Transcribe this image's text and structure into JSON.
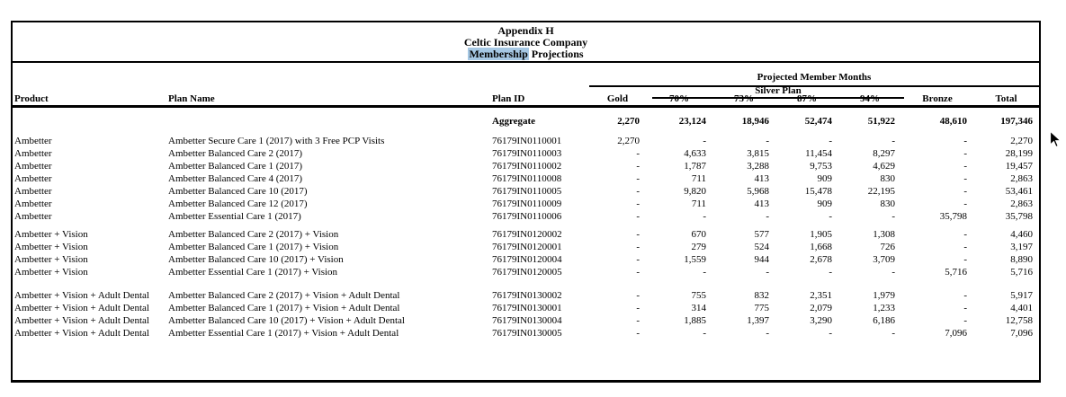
{
  "title": {
    "line1": "Appendix H",
    "line2": "Celtic Insurance Company",
    "line3_highlighted": "Membership",
    "line3_rest": " Projections"
  },
  "colors": {
    "find_highlight": "#a6c8e4",
    "text": "#000000",
    "background": "#ffffff"
  },
  "table": {
    "span_header": "Projected Member Months",
    "silver_span_header": "Silver Plan",
    "columns": {
      "product": "Product",
      "plan_name": "Plan Name",
      "plan_id": "Plan ID",
      "metal_levels": [
        "Gold",
        "70%",
        "73%",
        "87%",
        "94%",
        "Bronze",
        "Total"
      ]
    },
    "aggregate": {
      "label": "Aggregate",
      "values": [
        "2,270",
        "23,124",
        "18,946",
        "52,474",
        "51,922",
        "48,610",
        "197,346"
      ]
    },
    "groups": [
      {
        "rows": [
          {
            "product": "Ambetter",
            "plan_name": "Ambetter Secure Care 1 (2017) with 3 Free PCP Visits",
            "plan_id": "76179IN0110001",
            "values": [
              "2,270",
              "-",
              "-",
              "-",
              "-",
              "-",
              "2,270"
            ]
          },
          {
            "product": "Ambetter",
            "plan_name": "Ambetter Balanced Care 2 (2017)",
            "plan_id": "76179IN0110003",
            "values": [
              "-",
              "4,633",
              "3,815",
              "11,454",
              "8,297",
              "-",
              "28,199"
            ]
          },
          {
            "product": "Ambetter",
            "plan_name": "Ambetter Balanced Care 1 (2017)",
            "plan_id": "76179IN0110002",
            "values": [
              "-",
              "1,787",
              "3,288",
              "9,753",
              "4,629",
              "-",
              "19,457"
            ]
          },
          {
            "product": "Ambetter",
            "plan_name": "Ambetter Balanced Care 4 (2017)",
            "plan_id": "76179IN0110008",
            "values": [
              "-",
              "711",
              "413",
              "909",
              "830",
              "-",
              "2,863"
            ]
          },
          {
            "product": "Ambetter",
            "plan_name": "Ambetter Balanced Care 10 (2017)",
            "plan_id": "76179IN0110005",
            "values": [
              "-",
              "9,820",
              "5,968",
              "15,478",
              "22,195",
              "-",
              "53,461"
            ]
          },
          {
            "product": "Ambetter",
            "plan_name": "Ambetter Balanced Care 12 (2017)",
            "plan_id": "76179IN0110009",
            "values": [
              "-",
              "711",
              "413",
              "909",
              "830",
              "-",
              "2,863"
            ]
          },
          {
            "product": "Ambetter",
            "plan_name": "Ambetter Essential Care 1 (2017)",
            "plan_id": "76179IN0110006",
            "values": [
              "-",
              "-",
              "-",
              "-",
              "-",
              "35,798",
              "35,798"
            ]
          }
        ]
      },
      {
        "rows": [
          {
            "product": "Ambetter + Vision",
            "plan_name": "Ambetter Balanced Care 2 (2017) + Vision",
            "plan_id": "76179IN0120002",
            "values": [
              "-",
              "670",
              "577",
              "1,905",
              "1,308",
              "-",
              "4,460"
            ]
          },
          {
            "product": "Ambetter + Vision",
            "plan_name": "Ambetter Balanced Care 1 (2017) + Vision",
            "plan_id": "76179IN0120001",
            "values": [
              "-",
              "279",
              "524",
              "1,668",
              "726",
              "-",
              "3,197"
            ]
          },
          {
            "product": "Ambetter + Vision",
            "plan_name": "Ambetter Balanced Care 10 (2017) + Vision",
            "plan_id": "76179IN0120004",
            "values": [
              "-",
              "1,559",
              "944",
              "2,678",
              "3,709",
              "-",
              "8,890"
            ]
          },
          {
            "product": "Ambetter + Vision",
            "plan_name": "Ambetter Essential Care 1 (2017) + Vision",
            "plan_id": "76179IN0120005",
            "values": [
              "-",
              "-",
              "-",
              "-",
              "-",
              "5,716",
              "5,716"
            ]
          }
        ]
      },
      {
        "rows": [
          {
            "product": "Ambetter + Vision + Adult Dental",
            "plan_name": "Ambetter Balanced Care 2 (2017) + Vision + Adult Dental",
            "plan_id": "76179IN0130002",
            "values": [
              "-",
              "755",
              "832",
              "2,351",
              "1,979",
              "-",
              "5,917"
            ]
          },
          {
            "product": "Ambetter + Vision + Adult Dental",
            "plan_name": "Ambetter Balanced Care 1 (2017) + Vision + Adult Dental",
            "plan_id": "76179IN0130001",
            "values": [
              "-",
              "314",
              "775",
              "2,079",
              "1,233",
              "-",
              "4,401"
            ]
          },
          {
            "product": "Ambetter + Vision + Adult Dental",
            "plan_name": "Ambetter Balanced Care 10 (2017) + Vision + Adult Dental",
            "plan_id": "76179IN0130004",
            "values": [
              "-",
              "1,885",
              "1,397",
              "3,290",
              "6,186",
              "-",
              "12,758"
            ]
          },
          {
            "product": "Ambetter + Vision + Adult Dental",
            "plan_name": "Ambetter Essential Care 1 (2017) + Vision + Adult Dental",
            "plan_id": "76179IN0130005",
            "values": [
              "-",
              "-",
              "-",
              "-",
              "-",
              "7,096",
              "7,096"
            ]
          }
        ]
      }
    ]
  }
}
